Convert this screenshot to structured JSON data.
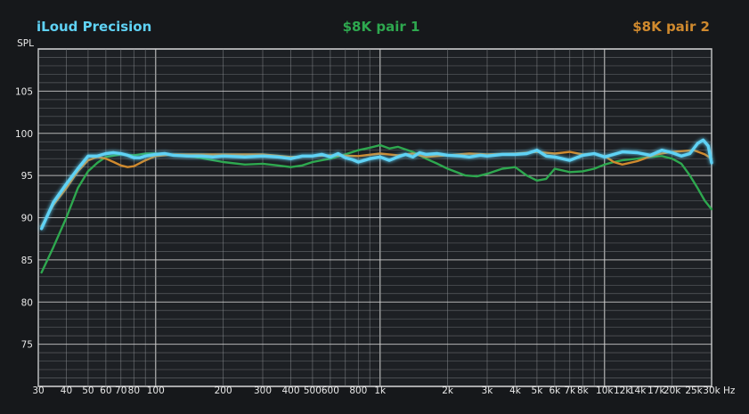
{
  "chart_data": {
    "type": "line",
    "xscale": "log",
    "xlim": [
      30,
      30000
    ],
    "ylim": [
      70,
      110
    ],
    "grid": true,
    "legend_placement": "top",
    "xunit": "Hz",
    "ylabel": "SPL",
    "y_ticks": [
      75,
      80,
      85,
      90,
      95,
      100,
      105
    ],
    "x_ticks": [
      {
        "v": 30,
        "label": "30"
      },
      {
        "v": 40,
        "label": "40"
      },
      {
        "v": 50,
        "label": "50"
      },
      {
        "v": 60,
        "label": "60"
      },
      {
        "v": 70,
        "label": "70"
      },
      {
        "v": 80,
        "label": "80"
      },
      {
        "v": 100,
        "label": "100"
      },
      {
        "v": 200,
        "label": "200"
      },
      {
        "v": 300,
        "label": "300"
      },
      {
        "v": 400,
        "label": "400"
      },
      {
        "v": 500,
        "label": "500"
      },
      {
        "v": 600,
        "label": "600"
      },
      {
        "v": 800,
        "label": "800"
      },
      {
        "v": 1000,
        "label": "1k"
      },
      {
        "v": 2000,
        "label": "2k"
      },
      {
        "v": 3000,
        "label": "3k"
      },
      {
        "v": 4000,
        "label": "4k"
      },
      {
        "v": 5000,
        "label": "5k"
      },
      {
        "v": 6000,
        "label": "6k"
      },
      {
        "v": 7000,
        "label": "7k"
      },
      {
        "v": 8000,
        "label": "8k"
      },
      {
        "v": 10000,
        "label": "10k"
      },
      {
        "v": 12000,
        "label": "12k"
      },
      {
        "v": 14000,
        "label": "14k"
      },
      {
        "v": 17000,
        "label": "17k"
      },
      {
        "v": 20000,
        "label": "20k"
      },
      {
        "v": 25000,
        "label": "25k"
      },
      {
        "v": 30000,
        "label": "30k"
      }
    ],
    "series": [
      {
        "name": "$8K pair 1",
        "color": "#2ea84f",
        "points": [
          [
            31,
            83.5
          ],
          [
            35,
            86.5
          ],
          [
            40,
            90
          ],
          [
            45,
            93.5
          ],
          [
            50,
            95.5
          ],
          [
            55,
            96.5
          ],
          [
            60,
            97.2
          ],
          [
            70,
            97.5
          ],
          [
            80,
            97.4
          ],
          [
            90,
            97.6
          ],
          [
            100,
            97.6
          ],
          [
            120,
            97.4
          ],
          [
            150,
            97.2
          ],
          [
            200,
            96.6
          ],
          [
            250,
            96.3
          ],
          [
            300,
            96.4
          ],
          [
            350,
            96.2
          ],
          [
            400,
            96
          ],
          [
            450,
            96.2
          ],
          [
            500,
            96.6
          ],
          [
            600,
            97
          ],
          [
            700,
            97.5
          ],
          [
            800,
            98
          ],
          [
            900,
            98.3
          ],
          [
            1000,
            98.6
          ],
          [
            1100,
            98.2
          ],
          [
            1200,
            98.4
          ],
          [
            1400,
            97.8
          ],
          [
            1600,
            97
          ],
          [
            1800,
            96.4
          ],
          [
            2000,
            95.8
          ],
          [
            2400,
            95
          ],
          [
            2700,
            94.9
          ],
          [
            3000,
            95.2
          ],
          [
            3500,
            95.8
          ],
          [
            4000,
            96
          ],
          [
            4500,
            95
          ],
          [
            5000,
            94.4
          ],
          [
            5500,
            94.6
          ],
          [
            6000,
            95.8
          ],
          [
            6500,
            95.6
          ],
          [
            7000,
            95.4
          ],
          [
            8000,
            95.5
          ],
          [
            9000,
            95.8
          ],
          [
            10000,
            96.3
          ],
          [
            11000,
            96.6
          ],
          [
            12000,
            96.8
          ],
          [
            14000,
            97
          ],
          [
            16000,
            97.2
          ],
          [
            18000,
            97.3
          ],
          [
            20000,
            97
          ],
          [
            22000,
            96.4
          ],
          [
            24000,
            95
          ],
          [
            26000,
            93.5
          ],
          [
            28000,
            92
          ],
          [
            30000,
            91
          ]
        ]
      },
      {
        "name": "$8K pair 2",
        "color": "#d08a2e",
        "points": [
          [
            31,
            89
          ],
          [
            35,
            91.5
          ],
          [
            40,
            93.5
          ],
          [
            45,
            95.5
          ],
          [
            50,
            96.8
          ],
          [
            55,
            97.2
          ],
          [
            60,
            97
          ],
          [
            65,
            96.6
          ],
          [
            70,
            96.2
          ],
          [
            75,
            96
          ],
          [
            80,
            96.1
          ],
          [
            90,
            96.8
          ],
          [
            100,
            97.3
          ],
          [
            120,
            97.5
          ],
          [
            150,
            97.5
          ],
          [
            200,
            97.5
          ],
          [
            300,
            97.5
          ],
          [
            400,
            97.2
          ],
          [
            500,
            97.3
          ],
          [
            600,
            97.4
          ],
          [
            800,
            97.3
          ],
          [
            1000,
            97.6
          ],
          [
            1200,
            97.4
          ],
          [
            1400,
            97.6
          ],
          [
            1600,
            97.2
          ],
          [
            2000,
            97.4
          ],
          [
            2500,
            97.6
          ],
          [
            3000,
            97.5
          ],
          [
            4000,
            97.6
          ],
          [
            5000,
            97.8
          ],
          [
            6000,
            97.6
          ],
          [
            7000,
            97.8
          ],
          [
            8000,
            97.5
          ],
          [
            9000,
            97.6
          ],
          [
            10000,
            97.3
          ],
          [
            11000,
            96.6
          ],
          [
            12000,
            96.3
          ],
          [
            14000,
            96.7
          ],
          [
            17000,
            97.5
          ],
          [
            20000,
            97.8
          ],
          [
            25000,
            98
          ],
          [
            28000,
            97.5
          ],
          [
            30000,
            97
          ]
        ]
      },
      {
        "name": "iLoud Precision",
        "color": "#5fd2f5",
        "points": [
          [
            31,
            88.7
          ],
          [
            35,
            91.8
          ],
          [
            40,
            94
          ],
          [
            45,
            95.8
          ],
          [
            50,
            97.3
          ],
          [
            55,
            97.3
          ],
          [
            60,
            97.6
          ],
          [
            65,
            97.7
          ],
          [
            70,
            97.6
          ],
          [
            75,
            97.4
          ],
          [
            80,
            97.1
          ],
          [
            85,
            97.1
          ],
          [
            90,
            97.3
          ],
          [
            100,
            97.5
          ],
          [
            110,
            97.6
          ],
          [
            120,
            97.4
          ],
          [
            140,
            97.3
          ],
          [
            160,
            97.3
          ],
          [
            180,
            97.2
          ],
          [
            200,
            97.3
          ],
          [
            250,
            97.2
          ],
          [
            300,
            97.3
          ],
          [
            350,
            97.2
          ],
          [
            400,
            97
          ],
          [
            450,
            97.3
          ],
          [
            500,
            97.3
          ],
          [
            550,
            97.5
          ],
          [
            600,
            97.2
          ],
          [
            650,
            97.6
          ],
          [
            700,
            97.1
          ],
          [
            750,
            96.9
          ],
          [
            800,
            96.6
          ],
          [
            850,
            96.8
          ],
          [
            900,
            97
          ],
          [
            1000,
            97.2
          ],
          [
            1100,
            96.8
          ],
          [
            1200,
            97.2
          ],
          [
            1300,
            97.5
          ],
          [
            1400,
            97.2
          ],
          [
            1500,
            97.7
          ],
          [
            1600,
            97.5
          ],
          [
            1800,
            97.6
          ],
          [
            2000,
            97.4
          ],
          [
            2300,
            97.3
          ],
          [
            2500,
            97.2
          ],
          [
            2800,
            97.4
          ],
          [
            3000,
            97.3
          ],
          [
            3500,
            97.5
          ],
          [
            4000,
            97.5
          ],
          [
            4500,
            97.6
          ],
          [
            5000,
            98
          ],
          [
            5500,
            97.3
          ],
          [
            6000,
            97.2
          ],
          [
            7000,
            96.8
          ],
          [
            8000,
            97.4
          ],
          [
            9000,
            97.6
          ],
          [
            10000,
            97.2
          ],
          [
            11000,
            97.5
          ],
          [
            12000,
            97.8
          ],
          [
            14000,
            97.7
          ],
          [
            16000,
            97.4
          ],
          [
            18000,
            98
          ],
          [
            20000,
            97.7
          ],
          [
            22000,
            97.3
          ],
          [
            24000,
            97.6
          ],
          [
            26000,
            98.8
          ],
          [
            27500,
            99.2
          ],
          [
            29000,
            98.5
          ],
          [
            30000,
            96.5
          ]
        ]
      }
    ]
  }
}
